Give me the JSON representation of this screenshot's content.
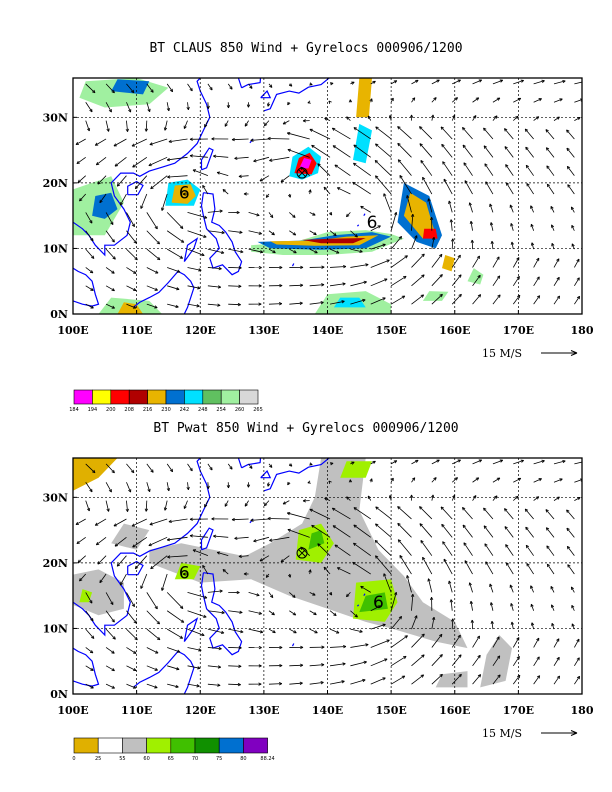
{
  "chart_data": [
    {
      "type": "map",
      "title": "BT CLAUS 850 Wind + Gyrelocs 000906/1200",
      "x_ticks": [
        "100E",
        "110E",
        "120E",
        "130E",
        "140E",
        "150E",
        "160E",
        "170E",
        "180"
      ],
      "y_ticks": [
        "0N",
        "10N",
        "20N",
        "30N"
      ],
      "xlim": [
        100,
        180
      ],
      "ylim": [
        0,
        36
      ],
      "grid": true,
      "wind_reference": "15 M/S",
      "colorbar": {
        "labels": [
          "184",
          "194",
          "200",
          "208",
          "216",
          "230",
          "242",
          "248",
          "254",
          "260",
          "265"
        ],
        "colors": [
          "#ff00ff",
          "#ffff00",
          "#ff0000",
          "#b00000",
          "#e8b400",
          "#0070d0",
          "#00e0ff",
          "#60c060",
          "#a0f0a0",
          "#d8d8d8"
        ]
      },
      "centers": [
        {
          "kind": "gyre",
          "lon": 117.5,
          "lat": 18.5
        },
        {
          "kind": "gyre",
          "lon": 147,
          "lat": 14
        },
        {
          "kind": "storm",
          "lon": 136,
          "lat": 21.5
        }
      ]
    },
    {
      "type": "map",
      "title": "BT Pwat 850 Wind + Gyrelocs 000906/1200",
      "x_ticks": [
        "100E",
        "110E",
        "120E",
        "130E",
        "140E",
        "150E",
        "160E",
        "170E",
        "180"
      ],
      "y_ticks": [
        "0N",
        "10N",
        "20N",
        "30N"
      ],
      "xlim": [
        100,
        180
      ],
      "ylim": [
        0,
        36
      ],
      "grid": true,
      "wind_reference": "15 M/S",
      "colorbar": {
        "labels": [
          "0",
          "25",
          "55",
          "60",
          "65",
          "70",
          "75",
          "80",
          "88.24"
        ],
        "colors": [
          "#e0b000",
          "#ffffff",
          "#c0c0c0",
          "#a0f000",
          "#40c000",
          "#109000",
          "#0070d0",
          "#8000c0"
        ]
      },
      "centers": [
        {
          "kind": "gyre",
          "lon": 117.5,
          "lat": 18.5
        },
        {
          "kind": "gyre",
          "lon": 148,
          "lat": 14
        },
        {
          "kind": "storm",
          "lon": 136,
          "lat": 21.5
        }
      ]
    }
  ]
}
